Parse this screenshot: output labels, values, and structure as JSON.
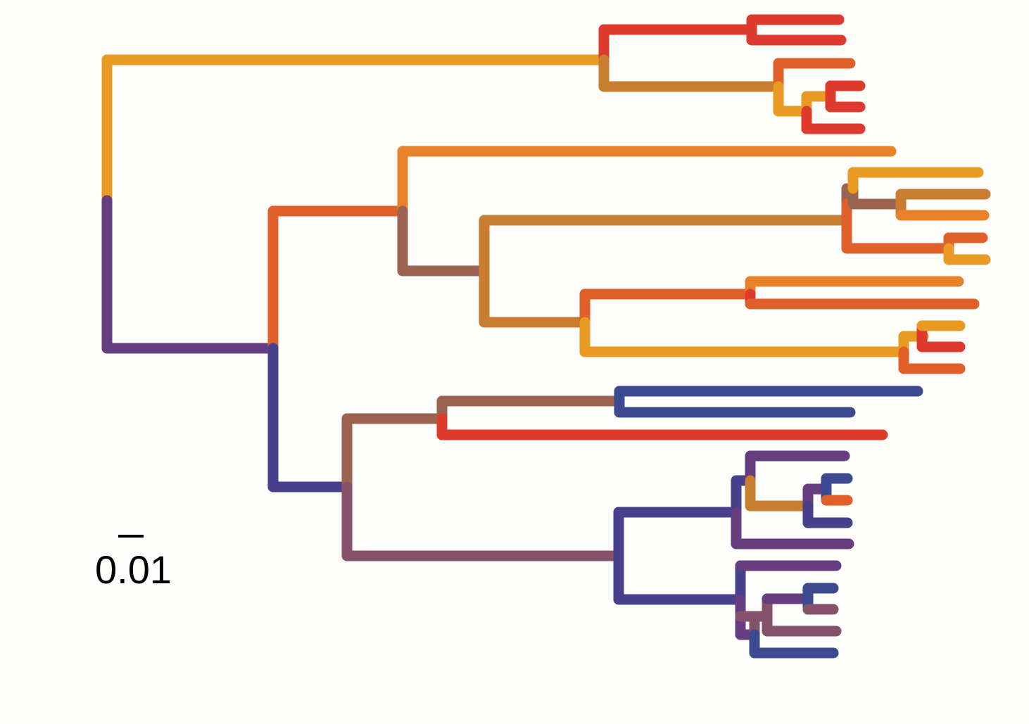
{
  "scale_bar": {
    "label": "0.01"
  },
  "colors": {
    "yellow_orange": "#e89a22",
    "orange": "#e8822a",
    "orange_red": "#e0602a",
    "red": "#df3a2e",
    "tan": "#c87d30",
    "brown": "#9a6350",
    "mauve": "#86526a",
    "purple": "#663e80",
    "indigo": "#48408a",
    "blue": "#3d4a90"
  }
}
